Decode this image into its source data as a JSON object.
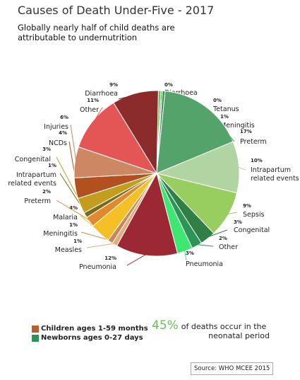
{
  "title": "Causes of Death Under-Five - 2017",
  "subtitle": "Globally nearly half of child deaths are attributable to undernutrition",
  "chart_data": {
    "type": "pie",
    "slices": [
      {
        "group": "newborn",
        "name": "Diarrhoea",
        "label": "0%",
        "value": 0.5,
        "color": "#6abf55"
      },
      {
        "group": "newborn",
        "name": "Tetanus",
        "label": "0%",
        "value": 0.3,
        "color": "#5aa867"
      },
      {
        "group": "newborn",
        "name": "Meningitis",
        "label": "1%",
        "value": 0.5,
        "color": "#3d8a5a"
      },
      {
        "group": "newborn",
        "name": "Preterm",
        "label": "17%",
        "value": 17,
        "color": "#54a36a"
      },
      {
        "group": "newborn",
        "name": "Intrapartum related events",
        "label": "10%",
        "value": 10,
        "color": "#b1d5a2"
      },
      {
        "group": "newborn",
        "name": "Sepsis",
        "label": "9%",
        "value": 9,
        "color": "#98cd60"
      },
      {
        "group": "newborn",
        "name": "Congenital",
        "label": "3%",
        "value": 3,
        "color": "#2f7f46"
      },
      {
        "group": "newborn",
        "name": "Other",
        "label": "2%",
        "value": 2,
        "color": "#2a9556"
      },
      {
        "group": "newborn",
        "name": "Pneumonia",
        "label": "3%",
        "value": 3,
        "color": "#3ee672"
      },
      {
        "group": "child",
        "name": "Pneumonia",
        "label": "12%",
        "value": 12,
        "color": "#9c2834"
      },
      {
        "group": "child",
        "name": "Measles",
        "label": "1%",
        "value": 1,
        "color": "#e3ad80"
      },
      {
        "group": "child",
        "name": "Meningitis",
        "label": "1%",
        "value": 1,
        "color": "#c98757"
      },
      {
        "group": "child",
        "name": "Malaria",
        "label": "4%",
        "value": 4,
        "color": "#f4c026"
      },
      {
        "group": "child",
        "name": "Preterm",
        "label": "2%",
        "value": 2,
        "color": "#e08a2d"
      },
      {
        "group": "child",
        "name": "Intrapartum related events",
        "label": "1%",
        "value": 1,
        "color": "#7c6a1c"
      },
      {
        "group": "child",
        "name": "Congenital",
        "label": "3%",
        "value": 3,
        "color": "#c39d1e"
      },
      {
        "group": "child",
        "name": "NCDs",
        "label": "4%",
        "value": 4,
        "color": "#b2511f"
      },
      {
        "group": "child",
        "name": "Injuries",
        "label": "6%",
        "value": 6,
        "color": "#cd8762"
      },
      {
        "group": "child",
        "name": "Other",
        "label": "11%",
        "value": 11,
        "color": "#e45656"
      },
      {
        "group": "child",
        "name": "Diarrhoea",
        "label": "9%",
        "value": 9,
        "color": "#8b2b2b"
      }
    ],
    "legend": [
      {
        "label": "Children ages 1-59 months",
        "color": "#b5602d"
      },
      {
        "label": "Newborns ages 0-27 days",
        "color": "#2a9556"
      }
    ]
  },
  "stat": {
    "value": "45%",
    "line1": "of deaths occur in the",
    "line2": "neonatal period"
  },
  "source": "Source: WHO MCEE 2015"
}
